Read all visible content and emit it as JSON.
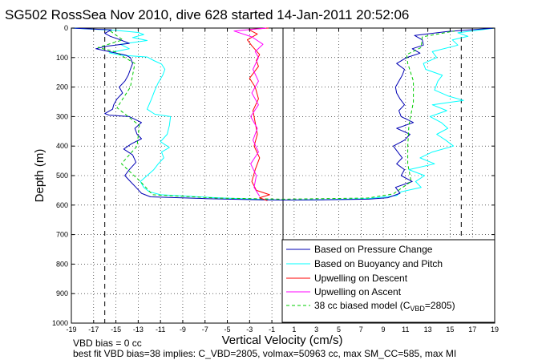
{
  "chart_data": {
    "type": "line",
    "title": "SG502 RossSea Nov 2010, dive 628 started 14-Jan-2011 20:52:06",
    "xlabel": "Vertical Velocity (cm/s)",
    "ylabel": "Depth (m)",
    "xlim": [
      -19,
      19
    ],
    "ylim": [
      0,
      1000
    ],
    "y_reversed": true,
    "grid": true,
    "xticks": [
      "-19",
      "-17",
      "-15",
      "-13",
      "-11",
      "-9",
      "-7",
      "-5",
      "-3",
      "-1",
      "1",
      "3",
      "5",
      "7",
      "9",
      "11",
      "13",
      "15",
      "17",
      "19"
    ],
    "yticks": [
      "0",
      "100",
      "200",
      "300",
      "400",
      "500",
      "600",
      "700",
      "800",
      "900",
      "1000"
    ],
    "legend_position": "bottom-right",
    "legend": [
      {
        "label": "Based on Pressure Change",
        "color": "#0000b4",
        "style": "solid"
      },
      {
        "label": "Based on Buoyancy and Pitch",
        "color": "#00ffff",
        "style": "solid"
      },
      {
        "label": "Upwelling on Descent",
        "color": "#ff0000",
        "style": "solid"
      },
      {
        "label": "Upwelling on Ascent",
        "color": "#ff00ff",
        "style": "solid"
      },
      {
        "label_prefix": "38 cc biased model (C",
        "label_sub": "VBD",
        "label_suffix": "=2805)",
        "color": "#00cc00",
        "style": "dashed"
      }
    ],
    "reference_lines": {
      "x": [
        -16,
        16
      ],
      "style": "dashed",
      "color": "#000000"
    },
    "zero_line_x": 0,
    "series": [
      {
        "color": "#00ffff",
        "points": [
          [
            -19,
            0
          ],
          [
            -15,
            8
          ],
          [
            -13,
            15
          ],
          [
            -12.5,
            22
          ],
          [
            -13.5,
            32
          ],
          [
            -12.2,
            42
          ],
          [
            -14.6,
            55
          ],
          [
            -13.8,
            70
          ],
          [
            -15.6,
            84
          ],
          [
            -14.5,
            92
          ],
          [
            -12.2,
            98
          ],
          [
            -11.6,
            110
          ],
          [
            -10.9,
            122
          ],
          [
            -10.6,
            140
          ],
          [
            -10.8,
            160
          ],
          [
            -11.2,
            185
          ],
          [
            -11.5,
            210
          ],
          [
            -11.8,
            240
          ],
          [
            -12.2,
            275
          ],
          [
            -11.5,
            292
          ],
          [
            -10.1,
            300
          ],
          [
            -10.2,
            330
          ],
          [
            -10.4,
            360
          ],
          [
            -11,
            385
          ],
          [
            -10.2,
            405
          ],
          [
            -10.9,
            420
          ],
          [
            -10.7,
            440
          ],
          [
            -11.2,
            460
          ],
          [
            -11.6,
            480
          ],
          [
            -12.2,
            500
          ],
          [
            -12.8,
            520
          ],
          [
            -12.5,
            540
          ],
          [
            -12,
            555
          ],
          [
            -11,
            565
          ],
          [
            -6,
            575
          ],
          [
            -1,
            582
          ],
          [
            0,
            583
          ],
          [
            3,
            582
          ],
          [
            7.6,
            578
          ],
          [
            10.2,
            568
          ],
          [
            10.6,
            555
          ],
          [
            12.4,
            540
          ],
          [
            11.9,
            520
          ],
          [
            12.7,
            500
          ],
          [
            11.3,
            480
          ],
          [
            13.6,
            460
          ],
          [
            12.3,
            440
          ],
          [
            13.4,
            420
          ],
          [
            15.3,
            400
          ],
          [
            14.6,
            380
          ],
          [
            13.8,
            360
          ],
          [
            14.8,
            340
          ],
          [
            14.2,
            320
          ],
          [
            13.2,
            300
          ],
          [
            14.7,
            280
          ],
          [
            13.4,
            260
          ],
          [
            16.2,
            245
          ],
          [
            14.8,
            230
          ],
          [
            13.6,
            210
          ],
          [
            13.9,
            180
          ],
          [
            14.3,
            160
          ],
          [
            12.8,
            140
          ],
          [
            12.6,
            120
          ],
          [
            13.8,
            100
          ],
          [
            13.4,
            80
          ],
          [
            15.7,
            58
          ],
          [
            15.2,
            40
          ],
          [
            16.6,
            28
          ],
          [
            15.7,
            16
          ],
          [
            19,
            0
          ]
        ]
      },
      {
        "color": "#0000b4",
        "points": [
          [
            -19,
            0
          ],
          [
            -15.4,
            6
          ],
          [
            -16,
            18
          ],
          [
            -15.5,
            28
          ],
          [
            -14.6,
            40
          ],
          [
            -13.8,
            52
          ],
          [
            -15.9,
            62
          ],
          [
            -16.8,
            70
          ],
          [
            -15.6,
            80
          ],
          [
            -14.1,
            92
          ],
          [
            -13.7,
            100
          ],
          [
            -13.5,
            120
          ],
          [
            -13.7,
            140
          ],
          [
            -13.9,
            160
          ],
          [
            -14.2,
            180
          ],
          [
            -14.7,
            200
          ],
          [
            -14.4,
            220
          ],
          [
            -14.9,
            240
          ],
          [
            -15.2,
            260
          ],
          [
            -15.3,
            275
          ],
          [
            -16,
            290
          ],
          [
            -15.6,
            295
          ],
          [
            -13.8,
            300
          ],
          [
            -12.7,
            320
          ],
          [
            -13.3,
            340
          ],
          [
            -13.1,
            360
          ],
          [
            -12.7,
            375
          ],
          [
            -13.6,
            392
          ],
          [
            -14.3,
            410
          ],
          [
            -13.5,
            430
          ],
          [
            -13.2,
            455
          ],
          [
            -13.8,
            480
          ],
          [
            -14.2,
            500
          ],
          [
            -13.7,
            520
          ],
          [
            -13.2,
            540
          ],
          [
            -12.7,
            560
          ],
          [
            -11.9,
            572
          ],
          [
            -7,
            578
          ],
          [
            -2,
            582
          ],
          [
            0,
            583
          ],
          [
            3.5,
            582
          ],
          [
            7.7,
            580
          ],
          [
            9.4,
            575
          ],
          [
            10.5,
            560
          ],
          [
            10.1,
            540
          ],
          [
            11.6,
            520
          ],
          [
            10.6,
            500
          ],
          [
            10.9,
            480
          ],
          [
            10.2,
            460
          ],
          [
            10.7,
            440
          ],
          [
            10.3,
            420
          ],
          [
            9.9,
            400
          ],
          [
            10.9,
            380
          ],
          [
            11.4,
            360
          ],
          [
            10.2,
            340
          ],
          [
            11.7,
            320
          ],
          [
            10.6,
            300
          ],
          [
            10.4,
            280
          ],
          [
            10.9,
            260
          ],
          [
            10.5,
            240
          ],
          [
            10.2,
            220
          ],
          [
            10.1,
            200
          ],
          [
            10.4,
            180
          ],
          [
            10.7,
            160
          ],
          [
            10.9,
            140
          ],
          [
            10.2,
            120
          ],
          [
            11.1,
            100
          ],
          [
            12.3,
            85
          ],
          [
            11.6,
            70
          ],
          [
            12.6,
            58
          ],
          [
            12.5,
            40
          ],
          [
            11.8,
            25
          ],
          [
            14.7,
            12
          ],
          [
            19,
            0
          ]
        ]
      },
      {
        "color": "#00cc00",
        "dashed": true,
        "points": [
          [
            -15.5,
            10
          ],
          [
            -14.4,
            40
          ],
          [
            -16.6,
            66
          ],
          [
            -15.1,
            80
          ],
          [
            -13.3,
            120
          ],
          [
            -13.7,
            200
          ],
          [
            -14.9,
            270
          ],
          [
            -12.9,
            330
          ],
          [
            -13.1,
            400
          ],
          [
            -14.5,
            460
          ],
          [
            -12.8,
            520
          ],
          [
            -11.7,
            565
          ],
          [
            -6,
            576
          ],
          [
            0,
            580
          ],
          [
            7.6,
            576
          ],
          [
            9.9,
            562
          ],
          [
            11.5,
            520
          ],
          [
            11.2,
            460
          ],
          [
            11.2,
            400
          ],
          [
            11.3,
            330
          ],
          [
            11.7,
            250
          ],
          [
            11.7,
            180
          ],
          [
            11.2,
            120
          ],
          [
            11.1,
            90
          ],
          [
            12.4,
            66
          ],
          [
            12.5,
            30
          ],
          [
            15.4,
            10
          ]
        ]
      },
      {
        "color": "#ff0000",
        "points": [
          [
            -1.3,
            0
          ],
          [
            -3.1,
            5
          ],
          [
            -2.3,
            20
          ],
          [
            -3.2,
            40
          ],
          [
            -2.8,
            60
          ],
          [
            -2.1,
            90
          ],
          [
            -2.4,
            110
          ],
          [
            -2.2,
            130
          ],
          [
            -3,
            170
          ],
          [
            -2.5,
            200
          ],
          [
            -2.2,
            240
          ],
          [
            -2.7,
            280
          ],
          [
            -2.5,
            320
          ],
          [
            -2.3,
            360
          ],
          [
            -2.6,
            400
          ],
          [
            -2.1,
            440
          ],
          [
            -2.5,
            480
          ],
          [
            -2.8,
            520
          ],
          [
            -2.4,
            550
          ],
          [
            -1.2,
            565
          ],
          [
            -2.1,
            575
          ],
          [
            -1.4,
            585
          ]
        ]
      },
      {
        "color": "#ff00ff",
        "points": [
          [
            -1.5,
            0
          ],
          [
            -4.4,
            10
          ],
          [
            -2.8,
            30
          ],
          [
            -1.8,
            55
          ],
          [
            -2.5,
            80
          ],
          [
            -2.2,
            100
          ],
          [
            -2.7,
            140
          ],
          [
            -2.2,
            180
          ],
          [
            -2.8,
            220
          ],
          [
            -2.2,
            260
          ],
          [
            -2.9,
            300
          ],
          [
            -2.3,
            340
          ],
          [
            -2.7,
            380
          ],
          [
            -2.2,
            420
          ],
          [
            -2.9,
            460
          ],
          [
            -2.4,
            500
          ],
          [
            -2.6,
            540
          ],
          [
            -2.1,
            570
          ]
        ]
      }
    ]
  },
  "notes": {
    "line1": "VBD bias = 0 cc",
    "line2": "best fit VBD bias=38 implies: C_VBD=2805, volmax=50963 cc, max SM_CC=585, max MI"
  }
}
